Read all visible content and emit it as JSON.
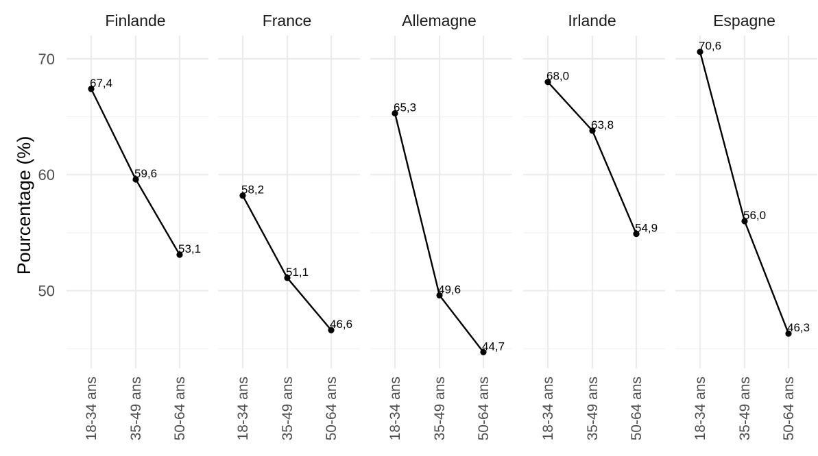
{
  "chart_data": {
    "type": "line",
    "ylabel": "Pourcentage (%)",
    "xlabel": "",
    "ylim": [
      43.3,
      72.0
    ],
    "y_ticks": [
      50,
      60,
      70
    ],
    "y_tick_labels": [
      "50",
      "60",
      "70"
    ],
    "categories": [
      "18-34 ans",
      "35-49 ans",
      "50-64 ans"
    ],
    "grid": true,
    "facets": [
      {
        "name": "Finlande",
        "values": [
          67.4,
          59.6,
          53.1
        ],
        "labels": [
          "67,4",
          "59,6",
          "53,1"
        ]
      },
      {
        "name": "France",
        "values": [
          58.2,
          51.1,
          46.6
        ],
        "labels": [
          "58,2",
          "51,1",
          "46,6"
        ]
      },
      {
        "name": "Allemagne",
        "values": [
          65.3,
          49.6,
          44.7
        ],
        "labels": [
          "65,3",
          "49,6",
          "44,7"
        ]
      },
      {
        "name": "Irlande",
        "values": [
          68.0,
          63.8,
          54.9
        ],
        "labels": [
          "68,0",
          "63,8",
          "54,9"
        ]
      },
      {
        "name": "Espagne",
        "values": [
          70.6,
          56.0,
          46.3
        ],
        "labels": [
          "70,6",
          "56,0",
          "46,3"
        ]
      }
    ]
  }
}
